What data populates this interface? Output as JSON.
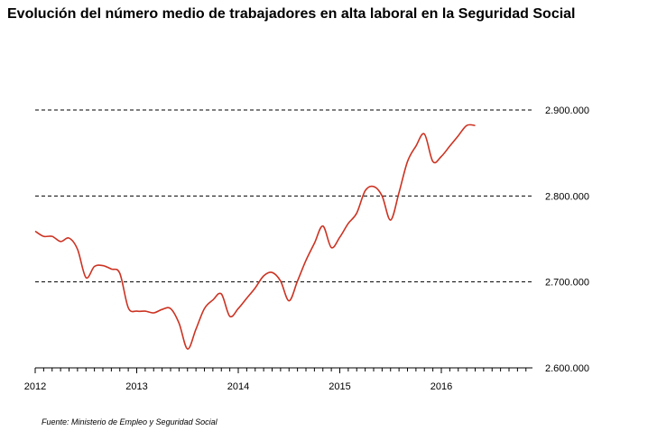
{
  "title": "Evolución del número medio de trabajadores en alta laboral en la Seguridad Social",
  "source": "Fuente: Ministerio de Empleo y Seguridad Social",
  "chart_data": {
    "type": "line",
    "title": "Evolución del número medio de trabajadores en alta laboral en la Seguridad Social",
    "xlabel": "",
    "ylabel": "",
    "y_axis_side": "right",
    "ylim": [
      2600000,
      2900000
    ],
    "y_ticks": [
      2600000,
      2700000,
      2800000,
      2900000
    ],
    "y_tick_labels": [
      "2.600.000",
      "2.700.000",
      "2.800.000",
      "2.900.000"
    ],
    "x_ticks": [
      2012,
      2013,
      2014,
      2015,
      2016
    ],
    "x_tick_labels": [
      "2012",
      "2013",
      "2014",
      "2015",
      "2016"
    ],
    "grid": "horizontal dashed",
    "legend": "none",
    "line_color": "#cc3322",
    "series": [
      {
        "x": [
          "2012-01",
          "2012-02",
          "2012-03",
          "2012-04",
          "2012-05",
          "2012-06",
          "2012-07",
          "2012-08",
          "2012-09",
          "2012-10",
          "2012-11",
          "2012-12",
          "2013-01",
          "2013-02",
          "2013-03",
          "2013-04",
          "2013-05",
          "2013-06",
          "2013-07",
          "2013-08",
          "2013-09",
          "2013-10",
          "2013-11",
          "2013-12",
          "2014-01",
          "2014-02",
          "2014-03",
          "2014-04",
          "2014-05",
          "2014-06",
          "2014-07",
          "2014-08",
          "2014-09",
          "2014-10",
          "2014-11",
          "2014-12",
          "2015-01",
          "2015-02",
          "2015-03",
          "2015-04",
          "2015-05",
          "2015-06",
          "2015-07",
          "2015-08",
          "2015-09",
          "2015-10",
          "2015-11",
          "2015-12",
          "2016-01",
          "2016-02",
          "2016-03",
          "2016-04",
          "2016-05"
        ],
        "values": [
          2759000,
          2753000,
          2753000,
          2747000,
          2751000,
          2738000,
          2705000,
          2718000,
          2719000,
          2715000,
          2710000,
          2670000,
          2666000,
          2666000,
          2664000,
          2668000,
          2669000,
          2652000,
          2622000,
          2645000,
          2669000,
          2679000,
          2686000,
          2660000,
          2669000,
          2681000,
          2693000,
          2707000,
          2711000,
          2701000,
          2678000,
          2701000,
          2725000,
          2745000,
          2765000,
          2740000,
          2752000,
          2768000,
          2780000,
          2806000,
          2811000,
          2800000,
          2772000,
          2804000,
          2840000,
          2858000,
          2872000,
          2840000,
          2846000,
          2858000,
          2870000,
          2882000,
          2882000
        ]
      }
    ]
  }
}
